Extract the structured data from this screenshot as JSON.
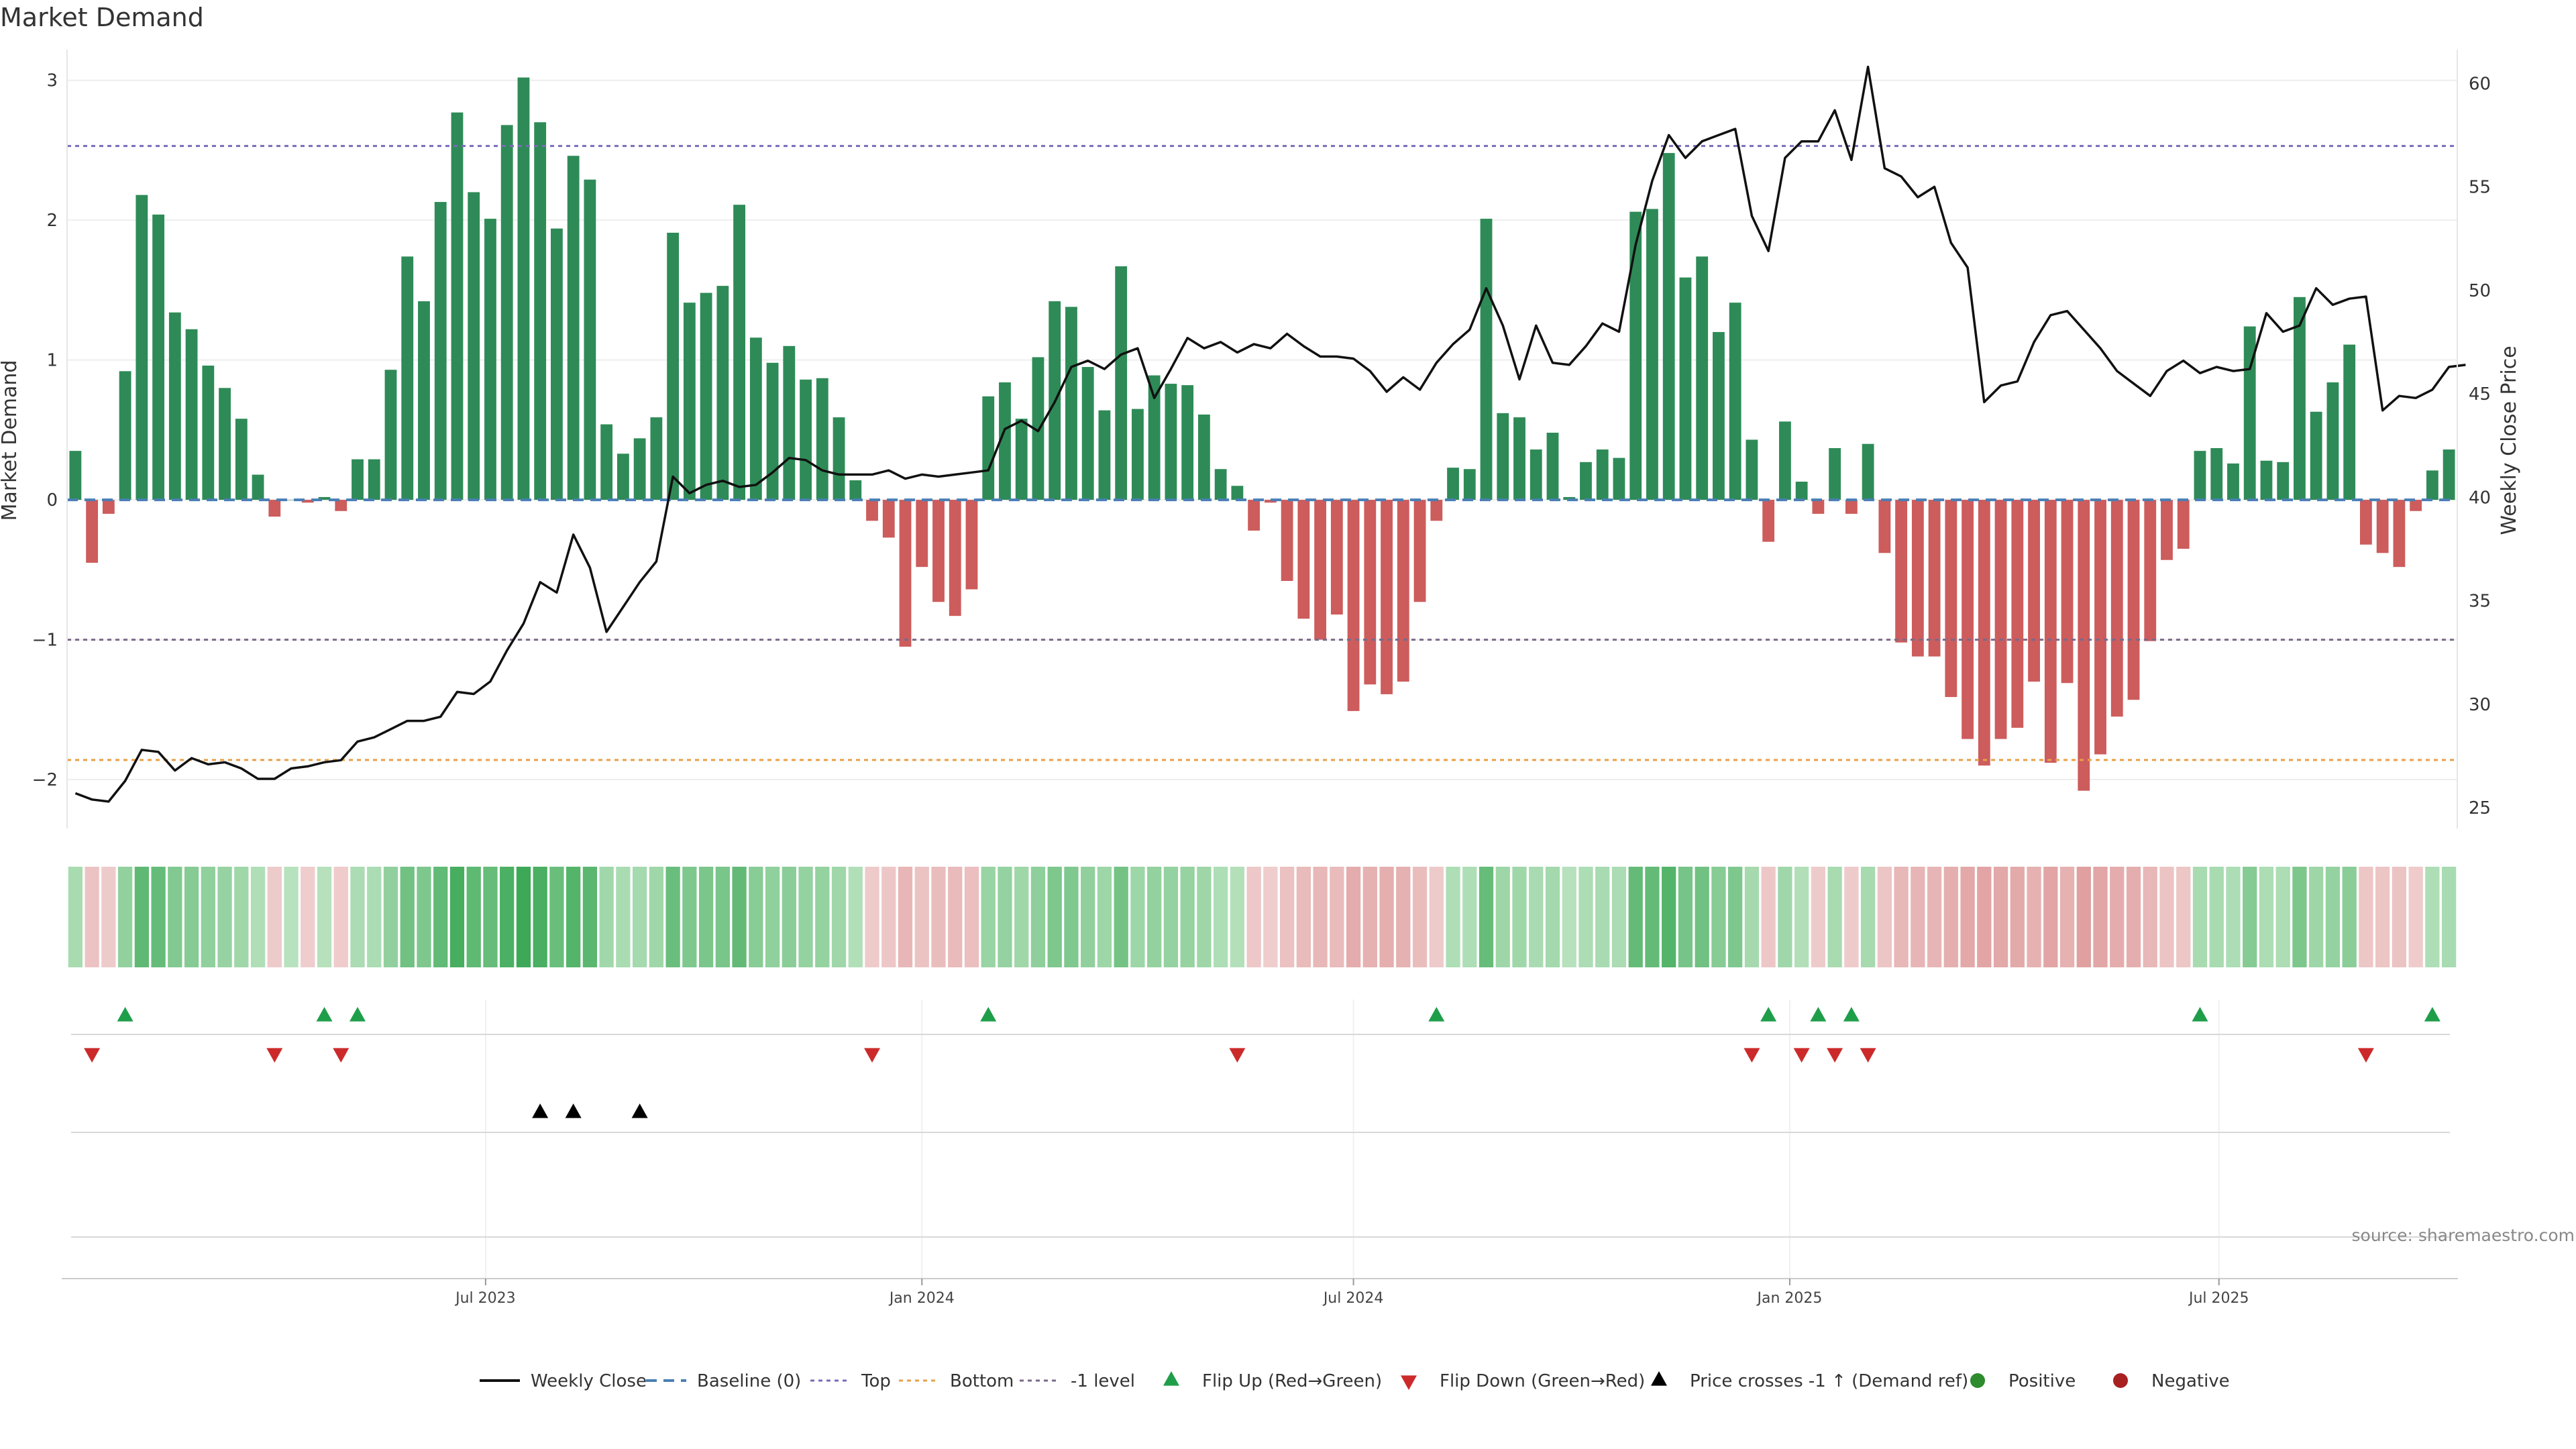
{
  "title": "Market Demand",
  "source": "source: sharemaestro.com",
  "colors": {
    "positive": "#2e8b57",
    "negative": "#cd5c5c",
    "price": "#111111",
    "baseline": "#4a7fb5",
    "top": "#7b6bb8",
    "bottom": "#e6a04a",
    "minus1": "#7a6a8a",
    "flip_up": "#1f9e4a",
    "flip_down": "#cc2a2a",
    "cross": "#000000",
    "dot_positive": "#2e8b2e",
    "dot_negative": "#a82020",
    "grid": "#eeeeee"
  },
  "chart_data": {
    "type": "bar",
    "title": "Market Demand",
    "ylabel": "Market Demand",
    "y2label": "Weekly Close Price",
    "ylim": [
      -2.35,
      3.2
    ],
    "y2lim": [
      24,
      61.5
    ],
    "yticks": [
      -2,
      -1,
      0,
      1,
      2,
      3
    ],
    "y2ticks": [
      25,
      30,
      35,
      40,
      45,
      50,
      55,
      60
    ],
    "start_date": "2023-01-09",
    "end_date": "2025-10-20",
    "reference_lines": {
      "top": 2.53,
      "bottom": -1.86,
      "minus1": -1.0,
      "baseline": 0
    },
    "x_ticks": [
      {
        "date": "2023-07-01",
        "label": "Jul 2023"
      },
      {
        "date": "2024-01-01",
        "label": "Jan 2024"
      },
      {
        "date": "2024-07-01",
        "label": "Jul 2024"
      },
      {
        "date": "2025-01-01",
        "label": "Jan 2025"
      },
      {
        "date": "2025-07-01",
        "label": "Jul 2025"
      }
    ],
    "demand": [
      0.35,
      -0.45,
      -0.1,
      0.92,
      2.18,
      2.04,
      1.34,
      1.22,
      0.96,
      0.8,
      0.58,
      0.18,
      -0.12,
      0.0,
      -0.02,
      0.02,
      -0.08,
      0.29,
      0.29,
      0.93,
      1.74,
      1.42,
      2.13,
      2.77,
      2.2,
      2.01,
      2.68,
      3.02,
      2.7,
      1.94,
      2.46,
      2.29,
      0.54,
      0.33,
      0.44,
      0.59,
      1.91,
      1.41,
      1.48,
      1.53,
      2.11,
      1.16,
      0.98,
      1.1,
      0.86,
      0.87,
      0.59,
      0.14,
      -0.15,
      -0.27,
      -1.05,
      -0.48,
      -0.73,
      -0.83,
      -0.64,
      0.74,
      0.84,
      0.58,
      1.02,
      1.42,
      1.38,
      0.95,
      0.64,
      1.67,
      0.65,
      0.89,
      0.83,
      0.82,
      0.61,
      0.22,
      0.1,
      -0.22,
      -0.02,
      -0.58,
      -0.85,
      -1.0,
      -0.82,
      -1.51,
      -1.32,
      -1.39,
      -1.3,
      -0.73,
      -0.15,
      0.23,
      0.22,
      2.01,
      0.62,
      0.59,
      0.36,
      0.48,
      0.02,
      0.27,
      0.36,
      0.3,
      2.06,
      2.08,
      2.48,
      1.59,
      1.74,
      1.2,
      1.41,
      0.43,
      -0.3,
      0.56,
      0.13,
      -0.1,
      0.37,
      -0.1,
      0.4,
      -0.38,
      -1.02,
      -1.12,
      -1.12,
      -1.41,
      -1.71,
      -1.9,
      -1.71,
      -1.63,
      -1.3,
      -1.88,
      -1.31,
      -2.08,
      -1.82,
      -1.55,
      -1.43,
      -1.01,
      -0.43,
      -0.35,
      0.35,
      0.37,
      0.26,
      1.24,
      0.28,
      0.27,
      1.45,
      0.63,
      0.84,
      1.11,
      -0.32,
      -0.38,
      -0.48,
      -0.08,
      0.21,
      0.36
    ],
    "price": [
      25.7,
      25.4,
      25.3,
      26.3,
      27.8,
      27.7,
      26.8,
      27.4,
      27.1,
      27.2,
      26.9,
      26.4,
      26.4,
      26.9,
      27.0,
      27.2,
      27.3,
      28.2,
      28.4,
      28.8,
      29.2,
      29.2,
      29.4,
      30.6,
      30.5,
      31.1,
      32.6,
      33.9,
      35.9,
      35.4,
      38.2,
      36.6,
      33.5,
      34.7,
      35.9,
      36.9,
      41.0,
      40.2,
      40.6,
      40.8,
      40.5,
      40.6,
      41.2,
      41.9,
      41.8,
      41.3,
      41.1,
      41.1,
      41.1,
      41.3,
      40.9,
      41.1,
      41.0,
      41.1,
      41.2,
      41.3,
      43.3,
      43.7,
      43.2,
      44.6,
      46.3,
      46.6,
      46.2,
      46.9,
      47.2,
      44.8,
      46.2,
      47.7,
      47.2,
      47.5,
      47.0,
      47.4,
      47.2,
      47.9,
      47.3,
      46.8,
      46.8,
      46.7,
      46.1,
      45.1,
      45.8,
      45.2,
      46.5,
      47.4,
      48.1,
      50.1,
      48.3,
      45.7,
      48.3,
      46.5,
      46.4,
      47.3,
      48.4,
      48.0,
      52.2,
      55.3,
      57.5,
      56.4,
      57.2,
      57.5,
      57.8,
      53.6,
      51.9,
      56.4,
      57.2,
      57.2,
      58.7,
      56.3,
      60.8,
      55.9,
      55.5,
      54.5,
      55.0,
      52.3,
      51.1,
      44.6,
      45.4,
      45.6,
      47.5,
      48.8,
      49.0,
      48.1,
      47.2,
      46.1,
      45.5,
      44.9,
      46.1,
      46.6,
      46.0,
      46.3,
      46.1,
      46.2,
      48.9,
      48.0,
      48.3,
      50.1,
      49.3,
      49.6,
      49.7,
      44.2,
      44.9,
      44.8,
      45.2,
      46.3,
      46.4
    ],
    "flip_up_index": [
      3,
      15,
      17,
      55,
      82,
      102,
      105,
      107,
      128,
      142
    ],
    "flip_down_index": [
      1,
      12,
      16,
      48,
      70,
      101,
      104,
      106,
      108,
      138
    ],
    "price_cross_index": [
      28,
      30,
      34
    ],
    "legend": [
      {
        "key": "weekly_close",
        "label": "Weekly Close",
        "marker": "line-solid"
      },
      {
        "key": "baseline",
        "label": "Baseline (0)",
        "marker": "line-dashed"
      },
      {
        "key": "top",
        "label": "Top",
        "marker": "line-dotted"
      },
      {
        "key": "bottom",
        "label": "Bottom",
        "marker": "line-dotted-orange"
      },
      {
        "key": "minus1",
        "label": "-1 level",
        "marker": "line-dotted-grey"
      },
      {
        "key": "flip_up",
        "label": "Flip Up (Red→Green)",
        "marker": "triangle-up-green"
      },
      {
        "key": "flip_down",
        "label": "Flip Down (Green→Red)",
        "marker": "triangle-down-red"
      },
      {
        "key": "price_cross",
        "label": "Price crosses -1 ↑ (Demand ref)",
        "marker": "triangle-up-black"
      },
      {
        "key": "positive",
        "label": "Positive",
        "marker": "dot-green"
      },
      {
        "key": "negative",
        "label": "Negative",
        "marker": "dot-red"
      }
    ]
  }
}
